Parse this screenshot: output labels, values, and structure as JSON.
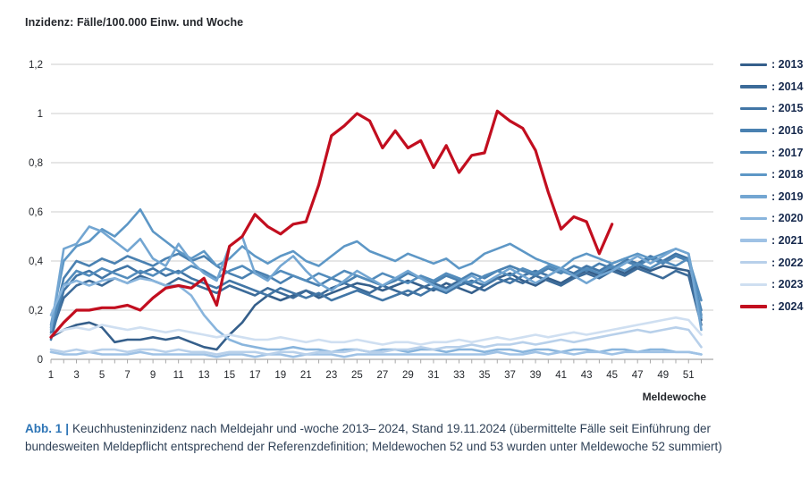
{
  "title": "Inzidenz: Fälle/100.000 Einw. und Woche",
  "caption": {
    "label": "Abb. 1",
    "separator": "|",
    "text": "Keuchhusteninzidenz nach Meldejahr und -woche 2013– 2024, Stand 19.11.2024 (übermittelte Fälle seit Einführung der bundesweiten Meldepflicht entsprechend der Referenzdefinition; Meldewochen 52 und 53 wurden unter Meldewoche 52 summiert)"
  },
  "legend": {
    "separator": ":"
  },
  "colors": {
    "grid": "#cccccc",
    "axis": "#a8a8a8",
    "tick_text": "#23262b",
    "accent_red": "#c20e1f",
    "caption_blue": "#2e75b6"
  },
  "chart_data": {
    "type": "line",
    "title": "Inzidenz: Fälle/100.000 Einw. und Woche",
    "xlabel": "Meldewoche",
    "ylabel": "",
    "ylim": [
      0,
      1.2
    ],
    "xlim": [
      1,
      52
    ],
    "grid": true,
    "legend_position": "right",
    "yticks": [
      0,
      0.2,
      0.4,
      0.6,
      0.8,
      1.0,
      1.2
    ],
    "ytick_labels": [
      "0",
      "0,2",
      "0,4",
      "0,6",
      "0,8",
      "1",
      "1,2"
    ],
    "xticks_labeled": [
      1,
      3,
      5,
      7,
      9,
      11,
      13,
      15,
      17,
      19,
      21,
      23,
      25,
      27,
      29,
      31,
      33,
      35,
      37,
      39,
      41,
      43,
      45,
      47,
      49,
      51
    ],
    "x_weeks": 52,
    "series": [
      {
        "name": "2013",
        "color": "#355f8b",
        "values": [
          0.09,
          0.12,
          0.14,
          0.15,
          0.13,
          0.07,
          0.08,
          0.08,
          0.09,
          0.08,
          0.09,
          0.07,
          0.05,
          0.04,
          0.1,
          0.15,
          0.22,
          0.26,
          0.24,
          0.26,
          0.28,
          0.25,
          0.27,
          0.29,
          0.31,
          0.3,
          0.28,
          0.3,
          0.32,
          0.3,
          0.28,
          0.31,
          0.29,
          0.27,
          0.3,
          0.33,
          0.35,
          0.32,
          0.3,
          0.33,
          0.31,
          0.34,
          0.36,
          0.34,
          0.37,
          0.35,
          0.38,
          0.36,
          0.38,
          0.37,
          0.36,
          0.16
        ]
      },
      {
        "name": "2014",
        "color": "#3c6b99",
        "values": [
          0.1,
          0.25,
          0.3,
          0.32,
          0.3,
          0.33,
          0.31,
          0.34,
          0.32,
          0.3,
          0.33,
          0.31,
          0.29,
          0.27,
          0.3,
          0.28,
          0.26,
          0.29,
          0.27,
          0.25,
          0.28,
          0.26,
          0.29,
          0.31,
          0.29,
          0.27,
          0.3,
          0.28,
          0.26,
          0.29,
          0.31,
          0.29,
          0.32,
          0.3,
          0.28,
          0.31,
          0.33,
          0.31,
          0.34,
          0.32,
          0.3,
          0.33,
          0.35,
          0.33,
          0.36,
          0.34,
          0.37,
          0.35,
          0.33,
          0.36,
          0.34,
          0.14
        ]
      },
      {
        "name": "2015",
        "color": "#4276a6",
        "values": [
          0.08,
          0.28,
          0.34,
          0.36,
          0.33,
          0.36,
          0.38,
          0.35,
          0.37,
          0.34,
          0.36,
          0.33,
          0.31,
          0.29,
          0.32,
          0.3,
          0.28,
          0.26,
          0.29,
          0.27,
          0.25,
          0.27,
          0.24,
          0.26,
          0.28,
          0.26,
          0.24,
          0.26,
          0.28,
          0.26,
          0.29,
          0.27,
          0.3,
          0.32,
          0.3,
          0.33,
          0.31,
          0.34,
          0.36,
          0.34,
          0.37,
          0.35,
          0.38,
          0.36,
          0.39,
          0.41,
          0.39,
          0.42,
          0.4,
          0.43,
          0.41,
          0.18
        ]
      },
      {
        "name": "2016",
        "color": "#4a81b1",
        "values": [
          0.11,
          0.33,
          0.4,
          0.38,
          0.41,
          0.39,
          0.42,
          0.4,
          0.38,
          0.41,
          0.43,
          0.4,
          0.42,
          0.38,
          0.35,
          0.33,
          0.36,
          0.34,
          0.31,
          0.34,
          0.32,
          0.3,
          0.33,
          0.31,
          0.34,
          0.32,
          0.3,
          0.32,
          0.35,
          0.33,
          0.31,
          0.34,
          0.32,
          0.35,
          0.33,
          0.36,
          0.38,
          0.36,
          0.34,
          0.37,
          0.35,
          0.38,
          0.36,
          0.39,
          0.37,
          0.4,
          0.38,
          0.41,
          0.39,
          0.42,
          0.4,
          0.2
        ]
      },
      {
        "name": "2017",
        "color": "#538cbc",
        "values": [
          0.13,
          0.3,
          0.36,
          0.34,
          0.37,
          0.35,
          0.33,
          0.36,
          0.34,
          0.37,
          0.35,
          0.38,
          0.36,
          0.33,
          0.36,
          0.38,
          0.35,
          0.33,
          0.36,
          0.34,
          0.32,
          0.35,
          0.33,
          0.36,
          0.34,
          0.32,
          0.35,
          0.33,
          0.31,
          0.34,
          0.32,
          0.35,
          0.33,
          0.31,
          0.34,
          0.36,
          0.34,
          0.37,
          0.35,
          0.38,
          0.36,
          0.34,
          0.37,
          0.35,
          0.38,
          0.36,
          0.39,
          0.37,
          0.4,
          0.38,
          0.41,
          0.24
        ]
      },
      {
        "name": "2018",
        "color": "#5d97c6",
        "values": [
          0.14,
          0.4,
          0.46,
          0.48,
          0.53,
          0.5,
          0.55,
          0.61,
          0.52,
          0.48,
          0.44,
          0.41,
          0.44,
          0.38,
          0.41,
          0.46,
          0.42,
          0.39,
          0.42,
          0.44,
          0.4,
          0.38,
          0.42,
          0.46,
          0.48,
          0.44,
          0.42,
          0.4,
          0.43,
          0.41,
          0.39,
          0.41,
          0.37,
          0.39,
          0.43,
          0.45,
          0.47,
          0.44,
          0.41,
          0.39,
          0.37,
          0.41,
          0.43,
          0.41,
          0.39,
          0.41,
          0.43,
          0.41,
          0.43,
          0.45,
          0.43,
          0.17
        ]
      },
      {
        "name": "2019",
        "color": "#73a6d2",
        "values": [
          0.12,
          0.45,
          0.47,
          0.54,
          0.52,
          0.48,
          0.44,
          0.49,
          0.41,
          0.38,
          0.47,
          0.4,
          0.35,
          0.32,
          0.46,
          0.5,
          0.35,
          0.32,
          0.38,
          0.42,
          0.36,
          0.31,
          0.28,
          0.32,
          0.36,
          0.33,
          0.3,
          0.33,
          0.36,
          0.33,
          0.3,
          0.28,
          0.31,
          0.34,
          0.31,
          0.34,
          0.37,
          0.34,
          0.31,
          0.34,
          0.37,
          0.34,
          0.31,
          0.34,
          0.36,
          0.39,
          0.42,
          0.39,
          0.42,
          0.45,
          0.43,
          0.12
        ]
      },
      {
        "name": "2020",
        "color": "#89b5dd",
        "values": [
          0.18,
          0.3,
          0.32,
          0.3,
          0.32,
          0.33,
          0.31,
          0.33,
          0.32,
          0.3,
          0.3,
          0.26,
          0.18,
          0.12,
          0.08,
          0.06,
          0.05,
          0.04,
          0.04,
          0.05,
          0.04,
          0.04,
          0.03,
          0.04,
          0.04,
          0.03,
          0.04,
          0.04,
          0.03,
          0.04,
          0.04,
          0.03,
          0.04,
          0.04,
          0.03,
          0.04,
          0.04,
          0.03,
          0.04,
          0.04,
          0.03,
          0.04,
          0.04,
          0.03,
          0.04,
          0.04,
          0.03,
          0.04,
          0.04,
          0.03,
          0.03,
          0.02
        ]
      },
      {
        "name": "2021",
        "color": "#9fc2e5",
        "values": [
          0.03,
          0.02,
          0.02,
          0.03,
          0.02,
          0.02,
          0.02,
          0.03,
          0.02,
          0.02,
          0.02,
          0.02,
          0.02,
          0.01,
          0.02,
          0.02,
          0.01,
          0.02,
          0.02,
          0.01,
          0.02,
          0.02,
          0.02,
          0.01,
          0.02,
          0.02,
          0.02,
          0.02,
          0.02,
          0.02,
          0.02,
          0.02,
          0.02,
          0.02,
          0.02,
          0.03,
          0.02,
          0.02,
          0.03,
          0.02,
          0.03,
          0.02,
          0.03,
          0.03,
          0.02,
          0.03,
          0.03,
          0.03,
          0.03,
          0.03,
          0.03,
          0.02
        ]
      },
      {
        "name": "2022",
        "color": "#b8d0ea",
        "values": [
          0.04,
          0.03,
          0.04,
          0.03,
          0.04,
          0.04,
          0.03,
          0.04,
          0.04,
          0.03,
          0.04,
          0.03,
          0.03,
          0.02,
          0.03,
          0.03,
          0.03,
          0.02,
          0.03,
          0.03,
          0.02,
          0.03,
          0.03,
          0.03,
          0.04,
          0.03,
          0.03,
          0.04,
          0.04,
          0.05,
          0.04,
          0.05,
          0.05,
          0.06,
          0.05,
          0.06,
          0.06,
          0.07,
          0.06,
          0.07,
          0.08,
          0.07,
          0.08,
          0.09,
          0.1,
          0.11,
          0.12,
          0.11,
          0.12,
          0.13,
          0.12,
          0.05
        ]
      },
      {
        "name": "2023",
        "color": "#cfdff1",
        "values": [
          0.1,
          0.12,
          0.13,
          0.12,
          0.14,
          0.13,
          0.12,
          0.13,
          0.12,
          0.11,
          0.12,
          0.11,
          0.1,
          0.09,
          0.1,
          0.09,
          0.08,
          0.08,
          0.09,
          0.08,
          0.07,
          0.08,
          0.07,
          0.07,
          0.08,
          0.07,
          0.06,
          0.07,
          0.07,
          0.06,
          0.07,
          0.07,
          0.08,
          0.07,
          0.08,
          0.09,
          0.08,
          0.09,
          0.1,
          0.09,
          0.1,
          0.11,
          0.1,
          0.11,
          0.12,
          0.13,
          0.14,
          0.15,
          0.16,
          0.17,
          0.16,
          0.1
        ]
      },
      {
        "name": "2024",
        "color": "#c20e1f",
        "values": [
          0.09,
          0.15,
          0.2,
          0.2,
          0.21,
          0.21,
          0.22,
          0.2,
          0.25,
          0.29,
          0.3,
          0.29,
          0.33,
          0.22,
          0.46,
          0.5,
          0.59,
          0.54,
          0.51,
          0.55,
          0.56,
          0.71,
          0.91,
          0.95,
          1.0,
          0.97,
          0.86,
          0.93,
          0.86,
          0.89,
          0.78,
          0.87,
          0.76,
          0.83,
          0.84,
          1.01,
          0.97,
          0.94,
          0.85,
          0.68,
          0.53,
          0.58,
          0.56,
          0.43,
          0.55
        ]
      }
    ]
  }
}
